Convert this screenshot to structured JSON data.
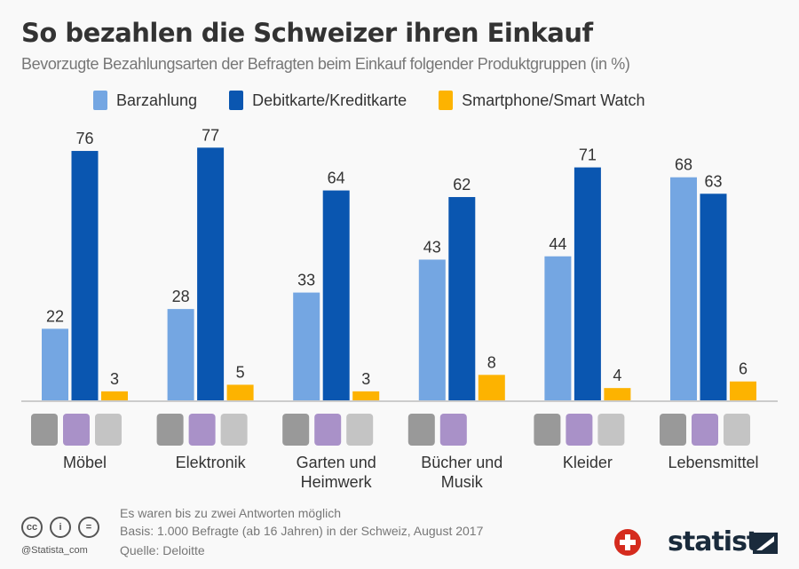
{
  "chart_data": {
    "type": "bar",
    "title": "So bezahlen die Schweizer ihren Einkauf",
    "subtitle": "Bevorzugte Bezahlungsarten der Befragten beim Einkauf folgender Produktgruppen (in %)",
    "categories": [
      "Möbel",
      "Elektronik",
      "Garten und Heimwerk",
      "Bücher und Musik",
      "Kleider",
      "Lebensmittel"
    ],
    "series": [
      {
        "name": "Barzahlung",
        "color": "#74a6e2",
        "values": [
          22,
          28,
          33,
          43,
          44,
          68
        ]
      },
      {
        "name": "Debitkarte/Kreditkarte",
        "color": "#0a56b0",
        "values": [
          76,
          77,
          64,
          62,
          71,
          63
        ]
      },
      {
        "name": "Smartphone/Smart Watch",
        "color": "#fdb300",
        "values": [
          3,
          5,
          3,
          8,
          4,
          6
        ]
      }
    ],
    "ylim": [
      0,
      80
    ],
    "grid": false,
    "legend": "top"
  },
  "category_labels": [
    [
      "Möbel"
    ],
    [
      "Elektronik"
    ],
    [
      "Garten und",
      "Heimwerk"
    ],
    [
      "Bücher und",
      "Musik"
    ],
    [
      "Kleider"
    ],
    [
      "Lebensmittel"
    ]
  ],
  "category_icons": [
    [
      "sofa-icon",
      "lamp-icon",
      "cabinet-icon"
    ],
    [
      "laptop-icon",
      "camera-icon",
      "phone-icon"
    ],
    [
      "watering-can-icon",
      "shovel-icon",
      "hammer-icon"
    ],
    [
      "books-icon",
      "music-note-icon"
    ],
    [
      "dress-icon",
      "hoodie-icon",
      "boot-icon"
    ],
    [
      "basket-icon",
      "banana-icon",
      "apple-icon"
    ]
  ],
  "footer": {
    "note1": "Es waren bis zu zwei Antworten möglich",
    "note2": "Basis: 1.000 Befragte (ab 16 Jahren) in der Schweiz, August 2017",
    "source": "Quelle: Deloitte",
    "handle": "@Statista_com",
    "cc": "cc",
    "brand": "statista"
  }
}
